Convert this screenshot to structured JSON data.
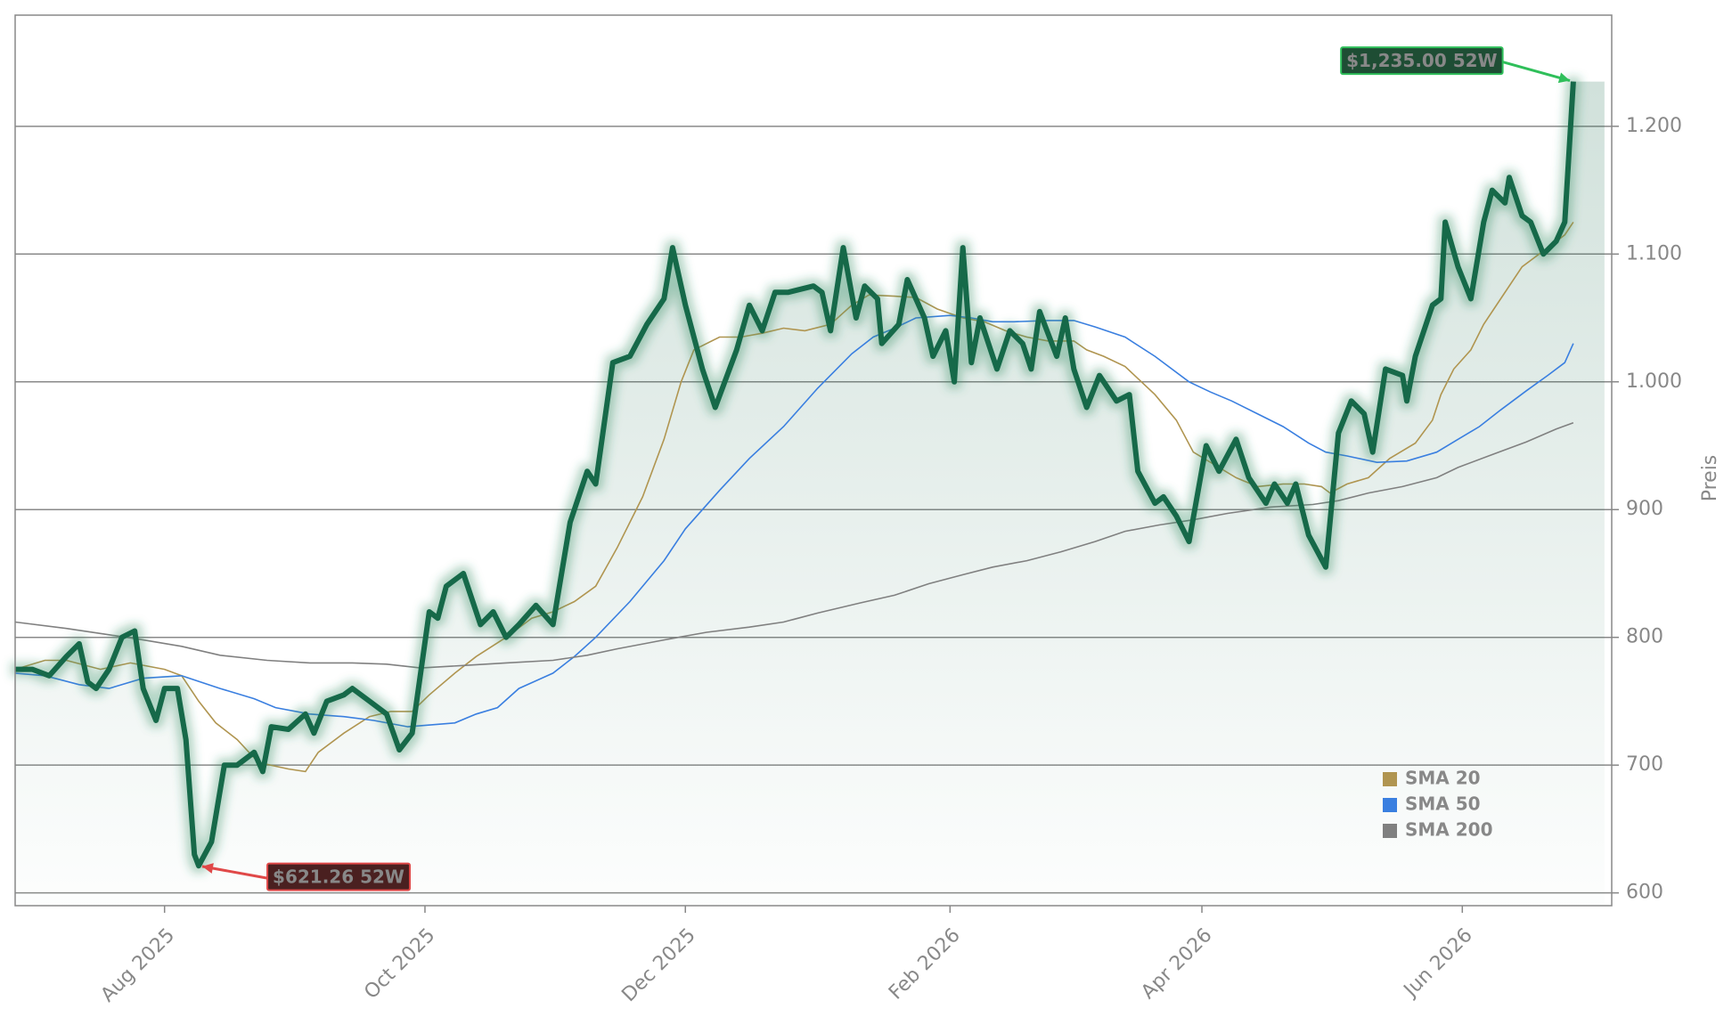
{
  "chart_data": {
    "type": "line",
    "ylabel": "Preis",
    "xlim": [
      0,
      374
    ],
    "ylim": [
      590,
      1287
    ],
    "xticks": [
      {
        "value": 35,
        "label": "Aug 2025"
      },
      {
        "value": 96,
        "label": "Oct 2025"
      },
      {
        "value": 157,
        "label": "Dec 2025"
      },
      {
        "value": 219,
        "label": "Feb 2026"
      },
      {
        "value": 278,
        "label": "Apr 2026"
      },
      {
        "value": 339,
        "label": "Jun 2026"
      }
    ],
    "yticks": [
      600,
      700,
      800,
      900,
      {
        "value": 1000,
        "label": "1.000"
      },
      {
        "value": 1100,
        "label": "1.100"
      },
      {
        "value": 1200,
        "label": "1.200"
      }
    ],
    "grid": true,
    "color": "#17694a",
    "x": [
      0,
      4,
      8,
      12,
      15,
      17,
      19,
      22,
      25,
      28,
      30,
      33,
      35,
      38,
      40,
      42,
      43,
      46,
      49,
      52,
      56,
      58,
      60,
      64,
      68,
      70,
      73,
      77,
      79,
      83,
      87,
      90,
      93,
      97,
      99,
      101,
      105,
      109,
      112,
      115,
      118,
      122,
      126,
      130,
      134,
      136,
      140,
      144,
      148,
      152,
      154,
      157,
      161,
      164,
      169,
      172,
      175,
      178,
      181,
      187,
      189,
      191,
      194,
      197,
      199,
      202,
      203,
      207,
      209,
      213,
      215,
      218,
      220,
      222,
      224,
      226,
      230,
      233,
      236,
      238,
      240,
      244,
      246,
      248,
      251,
      254,
      258,
      261,
      263,
      267,
      269,
      272,
      275,
      279,
      282,
      286,
      289,
      293,
      295,
      298,
      300,
      303,
      307,
      310,
      313,
      316,
      318,
      321,
      325,
      326,
      328,
      332,
      334,
      335,
      338,
      341,
      344,
      346,
      349,
      350,
      353,
      355,
      358,
      361,
      363,
      365
    ],
    "values": [
      775,
      775,
      770,
      785,
      795,
      765,
      760,
      775,
      800,
      805,
      760,
      735,
      760,
      760,
      720,
      630,
      621.26,
      640,
      700,
      700,
      710,
      695,
      730,
      728,
      740,
      725,
      750,
      755,
      760,
      750,
      740,
      712,
      725,
      820,
      815,
      840,
      850,
      810,
      820,
      800,
      810,
      825,
      810,
      890,
      930,
      920,
      1015,
      1020,
      1045,
      1065,
      1105,
      1060,
      1010,
      980,
      1025,
      1060,
      1040,
      1070,
      1070,
      1075,
      1070,
      1040,
      1105,
      1050,
      1075,
      1065,
      1030,
      1045,
      1080,
      1050,
      1020,
      1040,
      1000,
      1105,
      1015,
      1050,
      1010,
      1040,
      1030,
      1010,
      1055,
      1020,
      1050,
      1010,
      980,
      1005,
      985,
      990,
      930,
      905,
      910,
      895,
      875,
      950,
      930,
      955,
      925,
      905,
      920,
      905,
      920,
      880,
      855,
      960,
      985,
      975,
      945,
      1010,
      1005,
      985,
      1020,
      1060,
      1065,
      1125,
      1090,
      1065,
      1125,
      1150,
      1140,
      1160,
      1130,
      1125,
      1100,
      1110,
      1125,
      1235
    ],
    "series": [
      {
        "name": "SMA 20",
        "color": "#b09550",
        "x": [
          0,
          7,
          12,
          20,
          27,
          35,
          39,
          43,
          47,
          52,
          57,
          64,
          68,
          71,
          77,
          83,
          88,
          93,
          97,
          103,
          108,
          115,
          121,
          126,
          131,
          136,
          141,
          147,
          152,
          156,
          159,
          165,
          170,
          175,
          180,
          185,
          191,
          196,
          200,
          206,
          211,
          216,
          222,
          227,
          232,
          237,
          242,
          248,
          251,
          255,
          260,
          267,
          272,
          276,
          281,
          286,
          291,
          297,
          302,
          306,
          308,
          312,
          317,
          322,
          328,
          332,
          334,
          337,
          341,
          344,
          348,
          353,
          359,
          363,
          365
        ],
        "values": [
          775,
          782,
          782,
          775,
          780,
          775,
          770,
          750,
          733,
          720,
          702,
          697,
          695,
          710,
          725,
          738,
          742,
          742,
          755,
          772,
          785,
          800,
          815,
          820,
          828,
          840,
          870,
          910,
          955,
          1000,
          1025,
          1035,
          1035,
          1038,
          1042,
          1040,
          1045,
          1060,
          1068,
          1067,
          1066,
          1057,
          1050,
          1047,
          1040,
          1035,
          1032,
          1032,
          1025,
          1020,
          1012,
          990,
          970,
          945,
          935,
          925,
          918,
          920,
          920,
          918,
          913,
          920,
          925,
          940,
          952,
          970,
          990,
          1010,
          1025,
          1045,
          1065,
          1090,
          1105,
          1115,
          1125
        ]
      },
      {
        "name": "SMA 50",
        "color": "#3a7fe0",
        "x": [
          0,
          7,
          15,
          22,
          30,
          39,
          48,
          56,
          61,
          69,
          77,
          84,
          92,
          103,
          108,
          113,
          118,
          126,
          131,
          136,
          144,
          152,
          157,
          165,
          172,
          180,
          188,
          196,
          201,
          206,
          211,
          219,
          224,
          229,
          234,
          242,
          248,
          253,
          260,
          267,
          275,
          280,
          285,
          291,
          297,
          303,
          307,
          312,
          319,
          326,
          333,
          338,
          343,
          348,
          354,
          359,
          363,
          365
        ],
        "values": [
          772,
          770,
          763,
          760,
          768,
          770,
          760,
          752,
          745,
          740,
          738,
          735,
          730,
          733,
          740,
          745,
          760,
          772,
          785,
          800,
          828,
          860,
          885,
          915,
          940,
          965,
          995,
          1022,
          1035,
          1042,
          1050,
          1052,
          1050,
          1047,
          1047,
          1048,
          1048,
          1043,
          1035,
          1020,
          1000,
          992,
          985,
          975,
          965,
          952,
          945,
          942,
          937,
          938,
          945,
          955,
          965,
          978,
          993,
          1005,
          1015,
          1030
        ]
      },
      {
        "name": "SMA 200",
        "color": "#808080",
        "x": [
          0,
          12,
          22,
          30,
          39,
          48,
          59,
          69,
          79,
          87,
          95,
          105,
          115,
          126,
          134,
          141,
          152,
          162,
          172,
          180,
          188,
          198,
          206,
          214,
          222,
          229,
          237,
          245,
          253,
          260,
          268,
          276,
          284,
          294,
          304,
          310,
          317,
          325,
          333,
          338,
          346,
          354,
          361,
          365
        ],
        "values": [
          812,
          807,
          802,
          798,
          793,
          786,
          782,
          780,
          780,
          779,
          776,
          778,
          780,
          782,
          786,
          791,
          798,
          804,
          808,
          812,
          819,
          827,
          833,
          842,
          849,
          855,
          860,
          867,
          875,
          883,
          888,
          892,
          897,
          902,
          904,
          907,
          913,
          918,
          925,
          933,
          943,
          953,
          963,
          968
        ]
      }
    ],
    "annotations": [
      {
        "text": "$1,235.00 52W",
        "x": 365,
        "y": 1235,
        "color": "#2fbf5a"
      },
      {
        "text": "$621.26 52W",
        "x": 43,
        "y": 621.26,
        "color": "#e04848"
      }
    ]
  }
}
